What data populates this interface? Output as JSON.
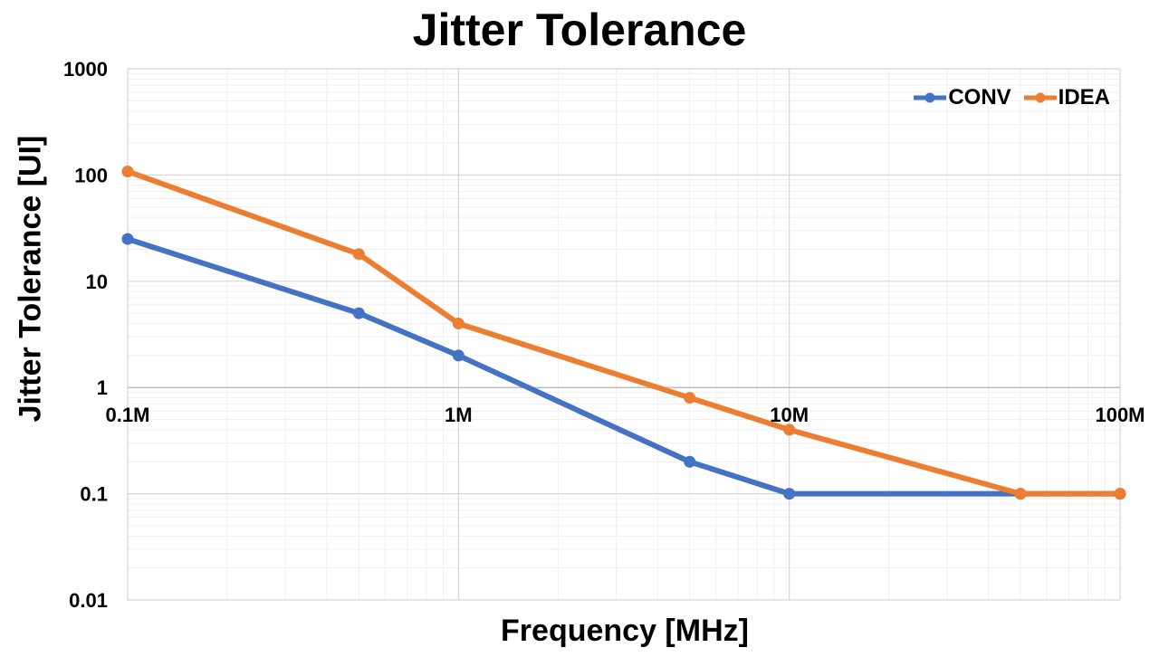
{
  "chart_data": {
    "type": "line",
    "title": "Jitter Tolerance",
    "xlabel": "Frequency [MHz]",
    "ylabel": "Jitter Tolerance [UI]",
    "x_scale": "log",
    "y_scale": "log",
    "xlim": [
      0.1,
      100
    ],
    "ylim": [
      0.01,
      1000
    ],
    "x_ticks": [
      {
        "value": 0.1,
        "label": "0.1M"
      },
      {
        "value": 1,
        "label": "1M"
      },
      {
        "value": 10,
        "label": "10M"
      },
      {
        "value": 100,
        "label": "100M"
      }
    ],
    "y_ticks": [
      {
        "value": 1000,
        "label": "1000"
      },
      {
        "value": 100,
        "label": "100"
      },
      {
        "value": 10,
        "label": "10"
      },
      {
        "value": 1,
        "label": "1"
      },
      {
        "value": 0.1,
        "label": "0.1"
      },
      {
        "value": 0.01,
        "label": "0.01"
      }
    ],
    "x_axis_crosses_y": 1,
    "grid": true,
    "legend_position": "top-right",
    "series": [
      {
        "name": "CONV",
        "color": "#4472C4",
        "points": [
          {
            "x": 0.1,
            "y": 25
          },
          {
            "x": 0.5,
            "y": 5
          },
          {
            "x": 1,
            "y": 2
          },
          {
            "x": 5,
            "y": 0.2
          },
          {
            "x": 10,
            "y": 0.1
          },
          {
            "x": 50,
            "y": 0.1
          },
          {
            "x": 100,
            "y": 0.1
          }
        ]
      },
      {
        "name": "IDEA",
        "color": "#ED7D31",
        "points": [
          {
            "x": 0.1,
            "y": 108
          },
          {
            "x": 0.5,
            "y": 18
          },
          {
            "x": 1,
            "y": 4
          },
          {
            "x": 5,
            "y": 0.8
          },
          {
            "x": 10,
            "y": 0.4
          },
          {
            "x": 50,
            "y": 0.1
          },
          {
            "x": 100,
            "y": 0.1
          }
        ]
      }
    ]
  }
}
